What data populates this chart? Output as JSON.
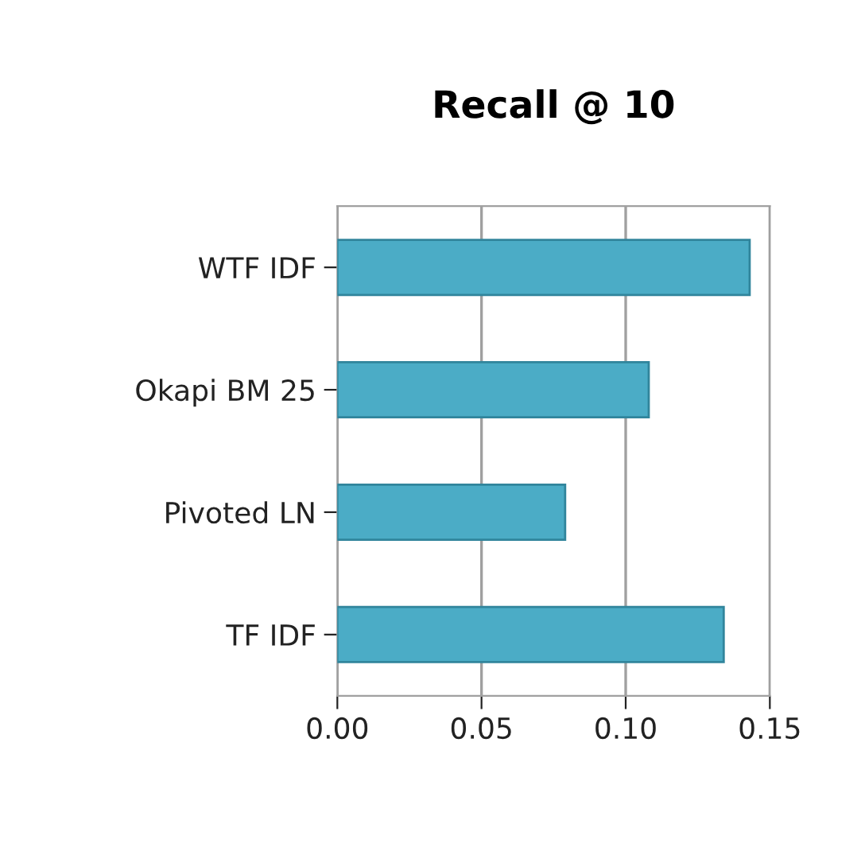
{
  "chart_data": {
    "type": "bar",
    "orientation": "horizontal",
    "title": "Recall @ 10",
    "categories": [
      "WTF IDF",
      "Okapi BM 25",
      "Pivoted LN",
      "TF IDF"
    ],
    "values": [
      0.143,
      0.108,
      0.079,
      0.134
    ],
    "color": "#4bacc6",
    "xlim": [
      0,
      0.15
    ],
    "xticks": [
      {
        "value": 0,
        "label": "0.00"
      },
      {
        "value": 0.05,
        "label": "0.05"
      },
      {
        "value": 0.1,
        "label": "0.10"
      },
      {
        "value": 0.15,
        "label": "0.15"
      }
    ],
    "grid": "x"
  }
}
